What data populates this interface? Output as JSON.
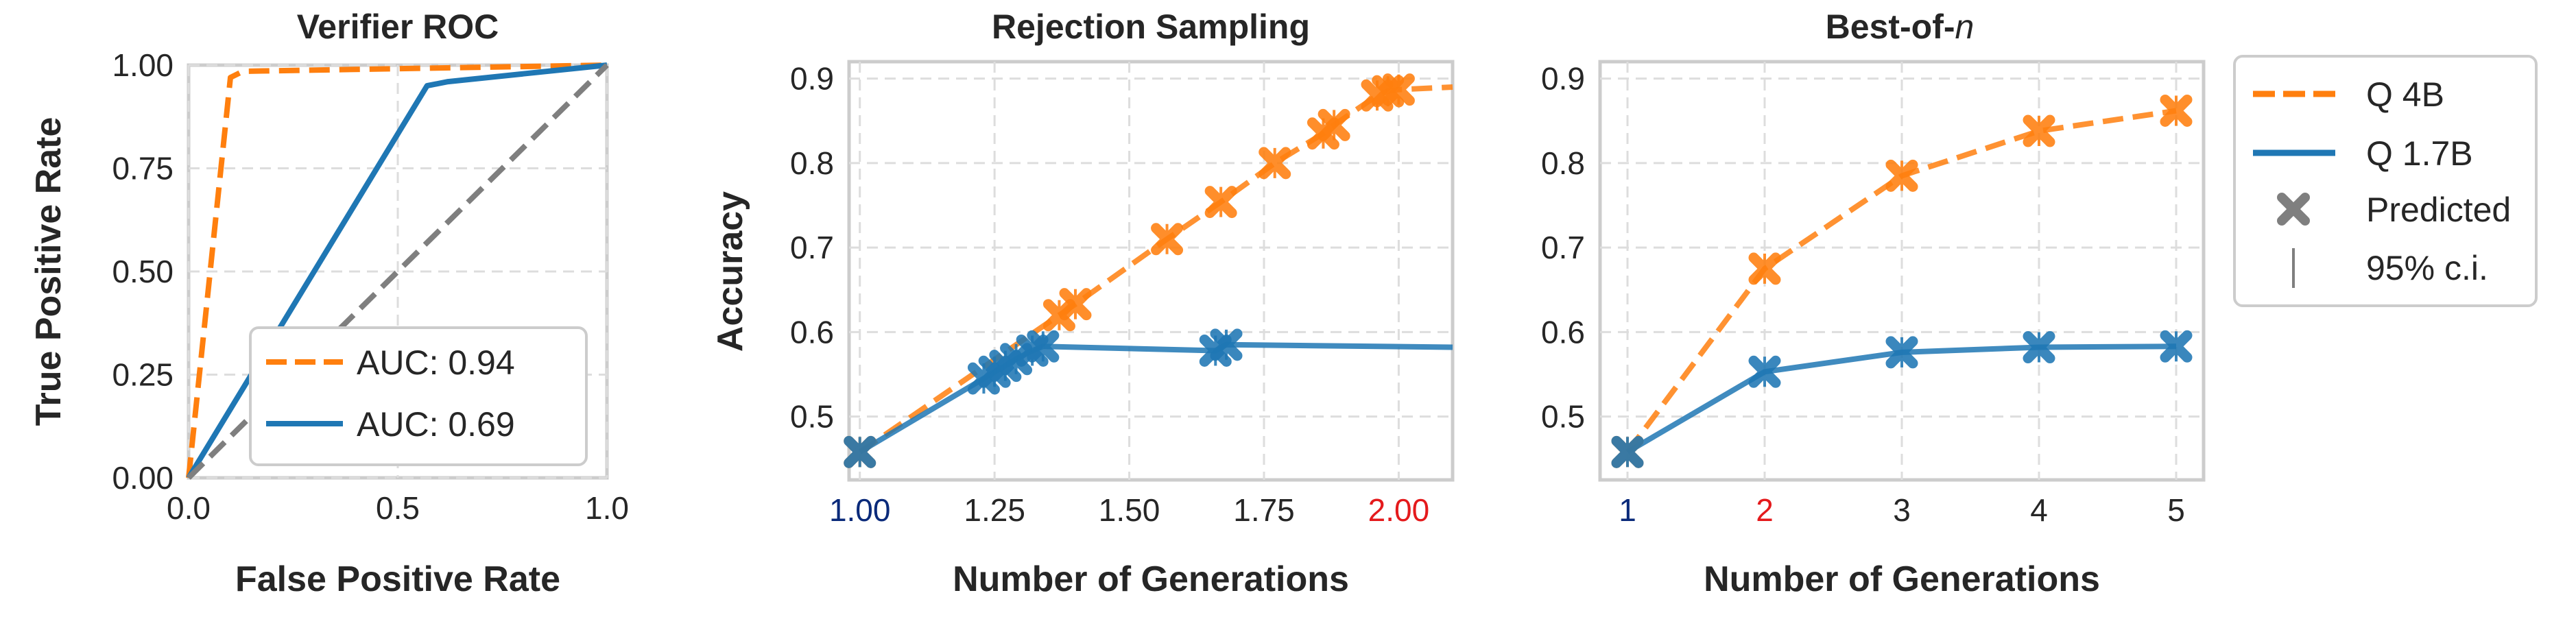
{
  "colors": {
    "orange": "#ff7f0e",
    "blue": "#1f77b4",
    "gray": "#7f7f7f",
    "tick_navy": "#0a2a7a",
    "tick_red": "#e41a1c"
  },
  "chart_data": [
    {
      "type": "line",
      "title": "Verifier ROC",
      "xlabel": "False Positive Rate",
      "ylabel": "True Positive Rate",
      "xlim": [
        0,
        1
      ],
      "ylim": [
        0,
        1
      ],
      "xticks": [
        0.0,
        0.5,
        1.0
      ],
      "xtick_labels": [
        "0.0",
        "0.5",
        "1.0"
      ],
      "yticks": [
        0.0,
        0.25,
        0.5,
        0.75,
        1.0
      ],
      "ytick_labels": [
        "0.00",
        "0.25",
        "0.50",
        "0.75",
        "1.00"
      ],
      "grid": true,
      "legend_position": "lower-right",
      "series": [
        {
          "name": "AUC: 0.94",
          "style": "dashed",
          "color": "orange",
          "x": [
            0.0,
            0.1,
            0.13,
            1.0
          ],
          "y": [
            0.0,
            0.97,
            0.985,
            1.0
          ]
        },
        {
          "name": "AUC: 0.69",
          "style": "solid",
          "color": "blue",
          "x": [
            0.0,
            0.57,
            0.62,
            1.0
          ],
          "y": [
            0.0,
            0.95,
            0.96,
            1.0
          ]
        },
        {
          "name": "",
          "style": "dashed",
          "color": "gray",
          "x": [
            0.0,
            1.0
          ],
          "y": [
            0.0,
            1.0
          ]
        }
      ]
    },
    {
      "type": "line",
      "title": "Rejection Sampling",
      "xlabel": "Number of Generations",
      "ylabel": "Accuracy",
      "xlim": [
        0.98,
        2.1
      ],
      "ylim": [
        0.425,
        0.92
      ],
      "xticks": [
        1.0,
        1.25,
        1.5,
        1.75,
        2.0
      ],
      "xtick_labels": [
        "1.00",
        "1.25",
        "1.50",
        "1.75",
        "2.00"
      ],
      "xtick_colors": [
        "tick_navy",
        "",
        "",
        "",
        "tick_red"
      ],
      "yticks": [
        0.5,
        0.6,
        0.7,
        0.8,
        0.9
      ],
      "ytick_labels": [
        "0.5",
        "0.6",
        "0.7",
        "0.8",
        "0.9"
      ],
      "grid": true,
      "series": [
        {
          "name": "Q 4B",
          "style": "dashed",
          "color": "orange",
          "x": [
            1.0,
            1.37,
            1.4,
            1.57,
            1.67,
            1.77,
            1.86,
            1.88,
            1.96,
            1.98,
            2.0,
            2.1
          ],
          "y": [
            0.458,
            0.62,
            0.633,
            0.71,
            0.754,
            0.8,
            0.835,
            0.845,
            0.88,
            0.885,
            0.887,
            0.89
          ],
          "markers_x": [
            1.0,
            1.37,
            1.4,
            1.57,
            1.67,
            1.77,
            1.86,
            1.88,
            1.96,
            1.98,
            2.0
          ],
          "markers_y": [
            0.458,
            0.62,
            0.633,
            0.71,
            0.754,
            0.8,
            0.835,
            0.845,
            0.88,
            0.885,
            0.887
          ]
        },
        {
          "name": "Q 1.7B",
          "style": "solid",
          "color": "blue",
          "x": [
            1.0,
            1.23,
            1.25,
            1.27,
            1.29,
            1.32,
            1.34,
            1.66,
            1.68,
            2.1
          ],
          "y": [
            0.458,
            0.545,
            0.553,
            0.56,
            0.568,
            0.578,
            0.583,
            0.578,
            0.585,
            0.582
          ],
          "markers_x": [
            1.0,
            1.23,
            1.25,
            1.27,
            1.29,
            1.32,
            1.34,
            1.66,
            1.68
          ],
          "markers_y": [
            0.458,
            0.545,
            0.553,
            0.56,
            0.568,
            0.578,
            0.583,
            0.578,
            0.585
          ]
        }
      ]
    },
    {
      "type": "line",
      "title": "Best-of-",
      "title_italic": "n",
      "xlabel": "Number of Generations",
      "ylabel": "",
      "xlim": [
        0.8,
        5.2
      ],
      "ylim": [
        0.425,
        0.92
      ],
      "xticks": [
        1,
        2,
        3,
        4,
        5
      ],
      "xtick_labels": [
        "1",
        "2",
        "3",
        "4",
        "5"
      ],
      "xtick_colors": [
        "tick_navy",
        "tick_red",
        "",
        "",
        ""
      ],
      "yticks": [
        0.5,
        0.6,
        0.7,
        0.8,
        0.9
      ],
      "ytick_labels": [
        "0.5",
        "0.6",
        "0.7",
        "0.8",
        "0.9"
      ],
      "grid": true,
      "series": [
        {
          "name": "Q 4B",
          "style": "dashed",
          "color": "orange",
          "x": [
            1,
            2,
            3,
            4,
            5
          ],
          "y": [
            0.458,
            0.675,
            0.785,
            0.838,
            0.862
          ],
          "markers_x": [
            1,
            2,
            3,
            4,
            5
          ],
          "markers_y": [
            0.458,
            0.675,
            0.785,
            0.838,
            0.862
          ]
        },
        {
          "name": "Q 1.7B",
          "style": "solid",
          "color": "blue",
          "x": [
            1,
            2,
            3,
            4,
            5
          ],
          "y": [
            0.458,
            0.553,
            0.576,
            0.582,
            0.583
          ],
          "markers_x": [
            1,
            2,
            3,
            4,
            5
          ],
          "markers_y": [
            0.458,
            0.553,
            0.576,
            0.582,
            0.583
          ]
        }
      ]
    }
  ],
  "legend": {
    "position": "right",
    "entries": [
      {
        "label": "Q 4B",
        "kind": "dashed-line",
        "color": "orange"
      },
      {
        "label": "Q 1.7B",
        "kind": "solid-line",
        "color": "blue"
      },
      {
        "label": "Predicted",
        "kind": "x-marker",
        "color": "gray"
      },
      {
        "label": "95% c.i.",
        "kind": "vertical-bar",
        "color": "gray"
      }
    ]
  }
}
